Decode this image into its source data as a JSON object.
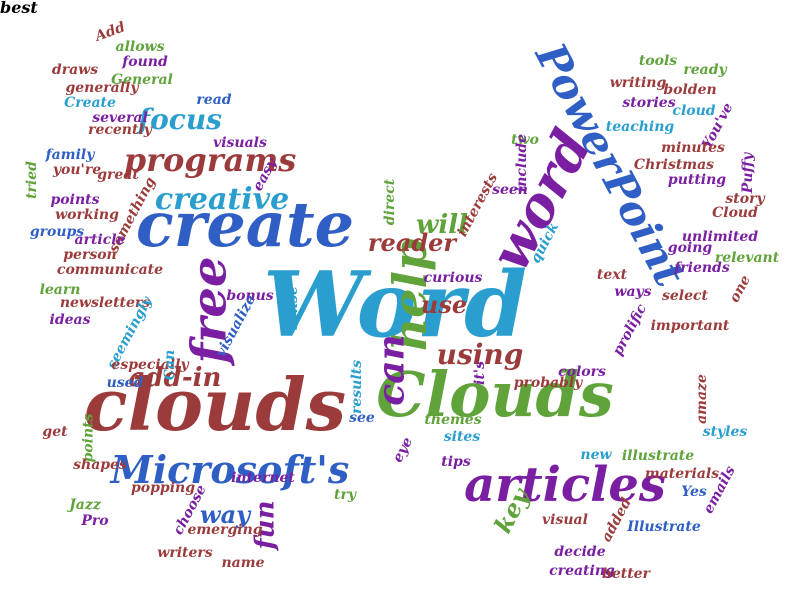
{
  "palette": {
    "purple": "#7a1fa2",
    "blue": "#2f5fc4",
    "green": "#5fa33a",
    "maroon": "#9b3b3b",
    "teal": "#2a9fcf"
  },
  "words": [
    {
      "text": "Word",
      "color": "teal"
    },
    {
      "text": "clouds",
      "color": "maroon"
    },
    {
      "text": "Clouds",
      "color": "green"
    },
    {
      "text": "create",
      "color": "blue"
    },
    {
      "text": "word",
      "color": "purple"
    },
    {
      "text": "PowerPoint",
      "color": "blue"
    },
    {
      "text": "articles",
      "color": "purple"
    },
    {
      "text": "Microsoft's",
      "color": "blue"
    },
    {
      "text": "free",
      "color": "purple"
    },
    {
      "text": "help",
      "color": "green"
    },
    {
      "text": "can",
      "color": "purple"
    },
    {
      "text": "programs",
      "color": "maroon"
    },
    {
      "text": "creative",
      "color": "teal"
    },
    {
      "text": "add-in",
      "color": "maroon"
    },
    {
      "text": "focus",
      "color": "teal"
    },
    {
      "text": "using",
      "color": "maroon"
    },
    {
      "text": "reader",
      "color": "maroon"
    },
    {
      "text": "will",
      "color": "green"
    },
    {
      "text": "use",
      "color": "maroon"
    },
    {
      "text": "way",
      "color": "blue"
    },
    {
      "text": "fun",
      "color": "purple"
    },
    {
      "text": "key",
      "color": "green"
    },
    {
      "text": "Add",
      "color": "maroon"
    },
    {
      "text": "allows",
      "color": "green"
    },
    {
      "text": "found",
      "color": "purple"
    },
    {
      "text": "draws",
      "color": "maroon"
    },
    {
      "text": "General",
      "color": "green"
    },
    {
      "text": "generally",
      "color": "maroon"
    },
    {
      "text": "Create",
      "color": "teal"
    },
    {
      "text": "several",
      "color": "purple"
    },
    {
      "text": "read",
      "color": "blue"
    },
    {
      "text": "family",
      "color": "blue"
    },
    {
      "text": "recently",
      "color": "maroon"
    },
    {
      "text": "visuals",
      "color": "purple"
    },
    {
      "text": "you're",
      "color": "maroon"
    },
    {
      "text": "tried",
      "color": "green"
    },
    {
      "text": "points",
      "color": "purple"
    },
    {
      "text": "great",
      "color": "maroon"
    },
    {
      "text": "easy",
      "color": "purple"
    },
    {
      "text": "something",
      "color": "maroon"
    },
    {
      "text": "working",
      "color": "maroon"
    },
    {
      "text": "groups",
      "color": "blue"
    },
    {
      "text": "article",
      "color": "purple"
    },
    {
      "text": "person",
      "color": "maroon"
    },
    {
      "text": "communicate",
      "color": "maroon"
    },
    {
      "text": "learn",
      "color": "green"
    },
    {
      "text": "newsletters",
      "color": "maroon"
    },
    {
      "text": "ideas",
      "color": "purple"
    },
    {
      "text": "seemingly",
      "color": "teal"
    },
    {
      "text": "especially",
      "color": "maroon"
    },
    {
      "text": "Can",
      "color": "teal"
    },
    {
      "text": "used",
      "color": "blue"
    },
    {
      "text": "get",
      "color": "maroon"
    },
    {
      "text": "points",
      "color": "green"
    },
    {
      "text": "shapes",
      "color": "maroon"
    },
    {
      "text": "Jazz",
      "color": "green"
    },
    {
      "text": "Pro",
      "color": "purple"
    },
    {
      "text": "popping",
      "color": "maroon"
    },
    {
      "text": "choose",
      "color": "purple"
    },
    {
      "text": "emerging",
      "color": "maroon"
    },
    {
      "text": "writers",
      "color": "maroon"
    },
    {
      "text": "name",
      "color": "maroon"
    },
    {
      "text": "internet",
      "color": "purple"
    },
    {
      "text": "try",
      "color": "green"
    },
    {
      "text": "bonus",
      "color": "purple"
    },
    {
      "text": "visualize",
      "color": "blue"
    },
    {
      "text": "sense",
      "color": "teal"
    },
    {
      "text": "curious",
      "color": "purple"
    },
    {
      "text": "it's",
      "color": "purple"
    },
    {
      "text": "results",
      "color": "teal"
    },
    {
      "text": "see",
      "color": "blue"
    },
    {
      "text": "direct",
      "color": "green"
    },
    {
      "text": "interests",
      "color": "maroon"
    },
    {
      "text": "seen",
      "color": "purple"
    },
    {
      "text": "two",
      "color": "green"
    },
    {
      "text": "include",
      "color": "purple"
    },
    {
      "text": "quick",
      "color": "teal"
    },
    {
      "text": "tools",
      "color": "green"
    },
    {
      "text": "writing",
      "color": "maroon"
    },
    {
      "text": "ready",
      "color": "green"
    },
    {
      "text": "bolden",
      "color": "maroon"
    },
    {
      "text": "cloud",
      "color": "teal"
    },
    {
      "text": "stories",
      "color": "purple"
    },
    {
      "text": "teaching",
      "color": "teal"
    },
    {
      "text": "You've",
      "color": "purple"
    },
    {
      "text": "minutes",
      "color": "maroon"
    },
    {
      "text": "Puffy",
      "color": "purple"
    },
    {
      "text": "Christmas",
      "color": "maroon"
    },
    {
      "text": "putting",
      "color": "purple"
    },
    {
      "text": "story",
      "color": "maroon"
    },
    {
      "text": "Cloud",
      "color": "maroon"
    },
    {
      "text": "unlimited",
      "color": "purple"
    },
    {
      "text": "going",
      "color": "purple"
    },
    {
      "text": "friends",
      "color": "purple"
    },
    {
      "text": "relevant",
      "color": "green"
    },
    {
      "text": "text",
      "color": "maroon"
    },
    {
      "text": "ways",
      "color": "purple"
    },
    {
      "text": "one",
      "color": "maroon"
    },
    {
      "text": "select",
      "color": "maroon"
    },
    {
      "text": "prolific",
      "color": "purple"
    },
    {
      "text": "important",
      "color": "maroon"
    },
    {
      "text": "colors",
      "color": "purple"
    },
    {
      "text": "probably",
      "color": "maroon"
    },
    {
      "text": "amaze",
      "color": "maroon"
    },
    {
      "text": "styles",
      "color": "teal"
    },
    {
      "text": "themes",
      "color": "green"
    },
    {
      "text": "sites",
      "color": "teal"
    },
    {
      "text": "new",
      "color": "teal"
    },
    {
      "text": "eye",
      "color": "purple"
    },
    {
      "text": "tips",
      "color": "purple"
    },
    {
      "text": "illustrate",
      "color": "green"
    },
    {
      "text": "materials",
      "color": "maroon"
    },
    {
      "text": "emails",
      "color": "purple"
    },
    {
      "text": "Yes",
      "color": "blue"
    },
    {
      "text": "visual",
      "color": "maroon"
    },
    {
      "text": "Illustrate",
      "color": "blue"
    },
    {
      "text": "added",
      "color": "maroon"
    },
    {
      "text": "decide",
      "color": "purple"
    },
    {
      "text": "creating",
      "color": "purple"
    },
    {
      "text": "better",
      "color": "maroon"
    },
    {
      "text": "best",
      "color": "maroon"
    }
  ]
}
